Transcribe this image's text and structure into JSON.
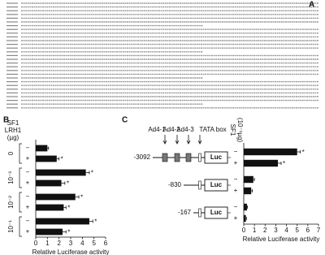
{
  "panel_labels": [
    "A",
    "B",
    "C"
  ],
  "chart_data": [
    {
      "type": "bar",
      "orientation": "horizontal",
      "header": [
        "SF1",
        "LRH1",
        "(µg)"
      ],
      "row_groups": [
        "0",
        "10⁻³",
        "10⁻²",
        "10⁻¹"
      ],
      "signs": [
        "−",
        "+",
        "−",
        "+",
        "−",
        "+",
        "−",
        "+"
      ],
      "values": [
        1.0,
        1.8,
        4.3,
        2.2,
        3.4,
        2.4,
        4.6,
        2.3
      ],
      "errors": [
        0.1,
        0.2,
        0.3,
        0.3,
        0.3,
        0.2,
        0.3,
        0.3
      ],
      "stars": [
        null,
        "*",
        "*",
        "*",
        "*",
        "*",
        "*",
        "*"
      ],
      "color": "#111111",
      "xlim": [
        0,
        6
      ],
      "xticks": [
        0,
        1,
        2,
        3,
        4,
        5,
        6
      ],
      "xlabel": "Relative Luciferase activity"
    },
    {
      "type": "bar",
      "orientation": "horizontal",
      "header": [
        "SF1",
        "(10⁻¹µg)"
      ],
      "signs": [
        "−",
        "+",
        "−",
        "+",
        "−",
        "+"
      ],
      "values": [
        5.0,
        3.2,
        0.9,
        0.7,
        0.3,
        0.2
      ],
      "errors": [
        0.3,
        0.3,
        0.1,
        0.1,
        0.05,
        0.05
      ],
      "stars": [
        "*",
        "*",
        null,
        null,
        null,
        null
      ],
      "color": "#111111",
      "xlim": [
        0,
        7
      ],
      "xticks": [
        0,
        1,
        2,
        3,
        4,
        5,
        6,
        7
      ],
      "xlabel": "Relative Luciferase activity"
    }
  ],
  "diagram": {
    "elements": [
      "Ad4-1",
      "Ad4-2",
      "Ad4-3",
      "TATA box"
    ],
    "constructs": [
      "-3092",
      "-830",
      "-167"
    ],
    "reporter": "Luc"
  }
}
